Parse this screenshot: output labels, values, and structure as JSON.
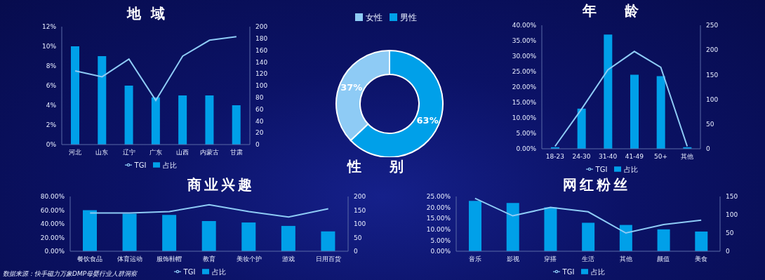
{
  "chart_data": [
    {
      "type": "bar",
      "title": "地域",
      "categories": [
        "河北",
        "山东",
        "辽宁",
        "广东",
        "山西",
        "内蒙古",
        "甘肃"
      ],
      "series": [
        {
          "name": "占比",
          "type": "bar",
          "color": "#00a0e9",
          "values": [
            10,
            9,
            6,
            4.8,
            5,
            5,
            4
          ]
        },
        {
          "name": "TGI",
          "type": "line",
          "axis": "y2",
          "color": "#8ecbf5",
          "values": [
            125,
            115,
            145,
            75,
            150,
            177,
            183
          ]
        }
      ],
      "ylim": [
        0,
        12
      ],
      "yticks": [
        {
          "value": 0,
          "label": "0%"
        },
        {
          "value": 2,
          "label": "2%"
        },
        {
          "value": 4,
          "label": "4%"
        },
        {
          "value": 6,
          "label": "6%"
        },
        {
          "value": 8,
          "label": "8%"
        },
        {
          "value": 10,
          "label": "10%"
        },
        {
          "value": 12,
          "label": "12%"
        }
      ],
      "y2lim": [
        0,
        200
      ],
      "y2ticks": [
        0,
        20,
        40,
        60,
        80,
        100,
        120,
        140,
        160,
        180,
        200
      ],
      "legend": "bottom"
    },
    {
      "type": "pie",
      "title": "性别",
      "categories": [
        "男性",
        "女性"
      ],
      "values": [
        63,
        37
      ],
      "value_labels": [
        "63%",
        "37%"
      ],
      "colors": [
        "#00a0e9",
        "#8ecbf5"
      ],
      "data_labels": true,
      "legend": "top"
    },
    {
      "type": "bar",
      "title": "年龄",
      "categories": [
        "18-23",
        "24-30",
        "31-40",
        "41-49",
        "50+",
        "其他"
      ],
      "series": [
        {
          "name": "占比",
          "type": "bar",
          "color": "#00a0e9",
          "values": [
            0.5,
            13,
            37,
            24,
            23.5,
            0.5
          ]
        },
        {
          "name": "TGI",
          "type": "line",
          "axis": "y2",
          "color": "#8ecbf5",
          "values": [
            5,
            80,
            160,
            197,
            165,
            5
          ]
        }
      ],
      "ylim": [
        0,
        40
      ],
      "yticks": [
        {
          "value": 0,
          "label": "0.00%"
        },
        {
          "value": 5,
          "label": "5.00%"
        },
        {
          "value": 10,
          "label": "10.00%"
        },
        {
          "value": 15,
          "label": "15.00%"
        },
        {
          "value": 20,
          "label": "20.00%"
        },
        {
          "value": 25,
          "label": "25.00%"
        },
        {
          "value": 30,
          "label": "30.00%"
        },
        {
          "value": 35,
          "label": "35.00%"
        },
        {
          "value": 40,
          "label": "40.00%"
        }
      ],
      "y2lim": [
        0,
        250
      ],
      "y2ticks": [
        0,
        50,
        100,
        150,
        200,
        250
      ],
      "legend": "bottom"
    },
    {
      "type": "bar",
      "title": "商业兴趣",
      "categories": [
        "餐饮食品",
        "体育运动",
        "服饰鞋帽",
        "教育",
        "美妆个护",
        "游戏",
        "日用百货"
      ],
      "series": [
        {
          "name": "占比",
          "type": "bar",
          "color": "#00a0e9",
          "values": [
            60,
            55,
            53,
            44,
            42,
            37,
            29
          ]
        },
        {
          "name": "TGI",
          "type": "line",
          "axis": "y2",
          "color": "#8ecbf5",
          "values": [
            140,
            140,
            145,
            170,
            145,
            125,
            155
          ]
        }
      ],
      "ylim": [
        0,
        80
      ],
      "yticks": [
        {
          "value": 0,
          "label": "0.00%"
        },
        {
          "value": 20,
          "label": "20.00%"
        },
        {
          "value": 40,
          "label": "40.00%"
        },
        {
          "value": 60,
          "label": "60.00%"
        },
        {
          "value": 80,
          "label": "80.00%"
        }
      ],
      "y2lim": [
        0,
        200
      ],
      "y2ticks": [
        0,
        50,
        100,
        150,
        200
      ],
      "legend": "bottom"
    },
    {
      "type": "bar",
      "title": "网红粉丝",
      "categories": [
        "音乐",
        "影视",
        "穿搭",
        "生活",
        "其他",
        "颜值",
        "美食"
      ],
      "series": [
        {
          "name": "占比",
          "type": "bar",
          "color": "#00a0e9",
          "values": [
            23,
            22,
            20,
            13,
            12,
            10,
            9
          ]
        },
        {
          "name": "TGI",
          "type": "line",
          "axis": "y2",
          "color": "#8ecbf5",
          "values": [
            145,
            97,
            120,
            108,
            50,
            73,
            85
          ]
        }
      ],
      "ylim": [
        0,
        25
      ],
      "yticks": [
        {
          "value": 0,
          "label": "0.00%"
        },
        {
          "value": 5,
          "label": "5.00%"
        },
        {
          "value": 10,
          "label": "10.00%"
        },
        {
          "value": 15,
          "label": "15.00%"
        },
        {
          "value": 20,
          "label": "20.00%"
        },
        {
          "value": 25,
          "label": "25.00%"
        }
      ],
      "y2lim": [
        0,
        150
      ],
      "y2ticks": [
        0,
        50,
        100,
        150
      ],
      "legend": "bottom"
    }
  ],
  "source": "数据来源：快手磁力万象DMP母婴行业人群洞察"
}
